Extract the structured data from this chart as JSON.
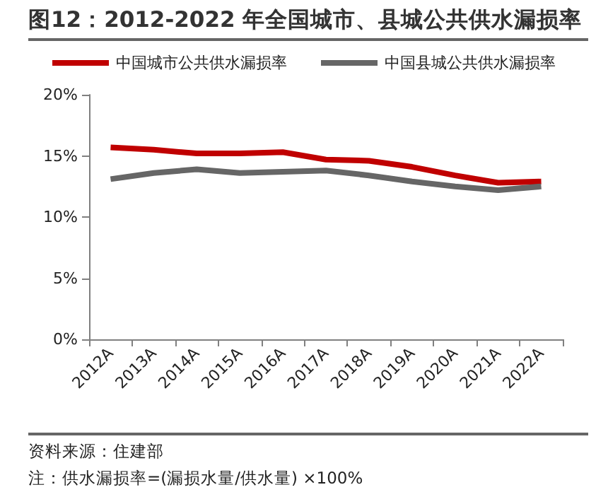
{
  "chart_data": {
    "type": "line",
    "title": "图12：2012-2022 年全国城市、县城公共供水漏损率",
    "categories": [
      "2012A",
      "2013A",
      "2014A",
      "2015A",
      "2016A",
      "2017A",
      "2018A",
      "2019A",
      "2020A",
      "2021A",
      "2022A"
    ],
    "series": [
      {
        "name": "中国城市公共供水漏损率",
        "color": "#c00000",
        "values": [
          15.7,
          15.5,
          15.2,
          15.2,
          15.3,
          14.7,
          14.6,
          14.1,
          13.4,
          12.8,
          12.9
        ]
      },
      {
        "name": "中国县城公共供水漏损率",
        "color": "#666666",
        "values": [
          13.1,
          13.6,
          13.9,
          13.6,
          13.7,
          13.8,
          13.4,
          12.9,
          12.5,
          12.2,
          12.5
        ]
      }
    ],
    "ylim": [
      0,
      20
    ],
    "yticks": [
      {
        "value": 0,
        "label": "0%"
      },
      {
        "value": 5,
        "label": "5%"
      },
      {
        "value": 10,
        "label": "10%"
      },
      {
        "value": 15,
        "label": "15%"
      },
      {
        "value": 20,
        "label": "20%"
      }
    ],
    "grid": false,
    "legend": "top",
    "marker": "none",
    "line_style": "solid",
    "annotations": [
      "资料来源：住建部",
      "注：供水漏损率=(漏损水量/供水量) ×100%"
    ]
  }
}
